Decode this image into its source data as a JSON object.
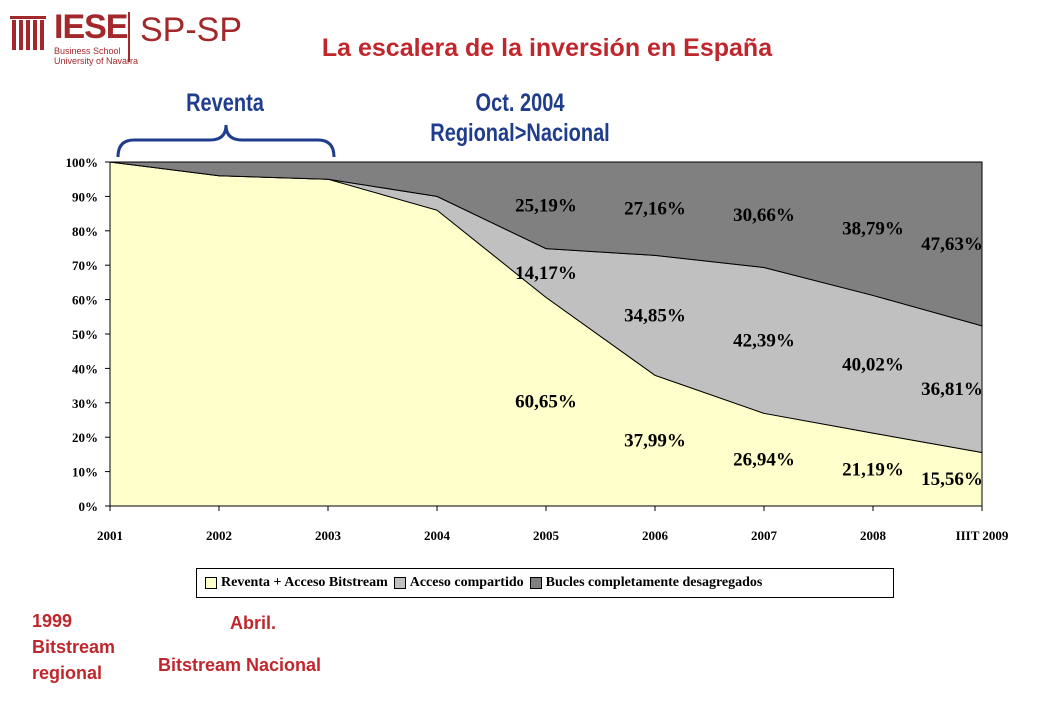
{
  "logo": {
    "brand": "IESE",
    "line1": "Business School",
    "line2": "University of Navarra",
    "partner": "SP-SP"
  },
  "title": "La escalera de la inversión en España",
  "annotations": {
    "reventa": "Reventa",
    "oct_line1": "Oct. 2004",
    "oct_line2": "Regional>Nacional"
  },
  "bottom_notes": {
    "left_line1": "1999",
    "left_line2": "Bitstream",
    "left_line3": "regional",
    "mid_line1": "Abril.",
    "mid_line2": "Bitstream Nacional"
  },
  "colors": {
    "brand": "#a3282b",
    "title": "#c0272d",
    "annotation": "#1f3d8c",
    "reventa": "#ffffcc",
    "compartido": "#c0c0c0",
    "bucles": "#808080",
    "brace": "#1f3d8c"
  },
  "chart_data": {
    "type": "area",
    "stacked": true,
    "categories": [
      "2001",
      "2002",
      "2003",
      "2004",
      "2005",
      "2006",
      "2007",
      "2008",
      "IIIT 2009"
    ],
    "series": [
      {
        "name": "Reventa + Acceso Bitstream",
        "color": "#ffffcc",
        "values": [
          100,
          96,
          95,
          86,
          60.65,
          37.99,
          26.94,
          21.19,
          15.56
        ]
      },
      {
        "name": "Acceso compartido",
        "color": "#c0c0c0",
        "values": [
          0,
          0,
          0,
          4,
          14.17,
          34.85,
          42.39,
          40.02,
          36.81
        ]
      },
      {
        "name": "Bucles completamente desagregados",
        "color": "#808080",
        "values": [
          0,
          4,
          5,
          10,
          25.19,
          27.16,
          30.66,
          38.79,
          47.63
        ]
      }
    ],
    "y_ticks": [
      "0%",
      "10%",
      "20%",
      "30%",
      "40%",
      "50%",
      "60%",
      "70%",
      "80%",
      "90%",
      "100%"
    ],
    "ylim": [
      0,
      100
    ],
    "grid": false,
    "legend_position": "bottom",
    "data_labels": [
      {
        "category": "2005",
        "series": 2,
        "text": "25,19%"
      },
      {
        "category": "2006",
        "series": 2,
        "text": "27,16%"
      },
      {
        "category": "2007",
        "series": 2,
        "text": "30,66%"
      },
      {
        "category": "2008",
        "series": 2,
        "text": "38,79%"
      },
      {
        "category": "IIIT 2009",
        "series": 2,
        "text": "47,63%"
      },
      {
        "category": "2005",
        "series": 1,
        "text": "14,17%"
      },
      {
        "category": "2006",
        "series": 1,
        "text": "34,85%"
      },
      {
        "category": "2007",
        "series": 1,
        "text": "42,39%"
      },
      {
        "category": "2008",
        "series": 1,
        "text": "40,02%"
      },
      {
        "category": "IIIT 2009",
        "series": 1,
        "text": "36,81%"
      },
      {
        "category": "2005",
        "series": 0,
        "text": "60,65%"
      },
      {
        "category": "2006",
        "series": 0,
        "text": "37,99%"
      },
      {
        "category": "2007",
        "series": 0,
        "text": "26,94%"
      },
      {
        "category": "2008",
        "series": 0,
        "text": "21,19%"
      },
      {
        "category": "IIIT 2009",
        "series": 0,
        "text": "15,56%"
      }
    ]
  }
}
